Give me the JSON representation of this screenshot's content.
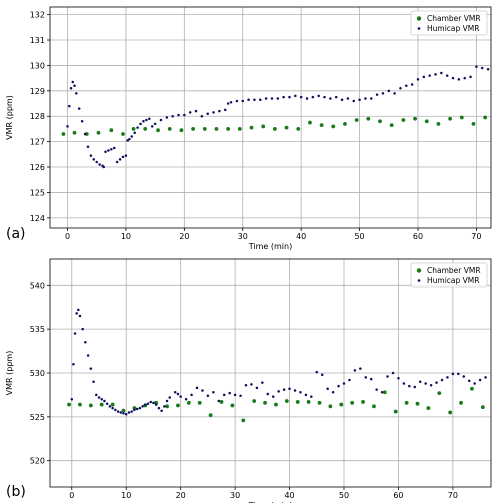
{
  "chart_data": [
    {
      "type": "scatter",
      "panel_label": "(a)",
      "xlabel": "Time (min)",
      "ylabel": "VMR (ppm)",
      "xlim": [
        -3,
        72.5
      ],
      "ylim": [
        123.6,
        132.3
      ],
      "xticks": [
        0,
        10,
        20,
        30,
        40,
        50,
        60,
        70
      ],
      "yticks": [
        124,
        125,
        126,
        127,
        128,
        129,
        130,
        131,
        132
      ],
      "grid": true,
      "legend": "top-right",
      "series": [
        {
          "name": "Chamber VMR",
          "color": "#1a7a1a",
          "marker": "dot",
          "x": [
            -0.7,
            1.2,
            3.3,
            5.3,
            7.5,
            9.5,
            11.3,
            13.3,
            15.5,
            17.5,
            19.5,
            21.5,
            23.5,
            25.5,
            27.5,
            29.5,
            31.5,
            33.5,
            35.5,
            37.5,
            39.5,
            41.5,
            43.5,
            45.5,
            47.5,
            49.5,
            51.5,
            53.5,
            55.5,
            57.5,
            59.5,
            61.5,
            63.5,
            65.5,
            67.5,
            69.5,
            71.5
          ],
          "y": [
            127.3,
            127.35,
            127.3,
            127.35,
            127.45,
            127.3,
            127.5,
            127.5,
            127.45,
            127.5,
            127.45,
            127.5,
            127.5,
            127.5,
            127.5,
            127.5,
            127.55,
            127.6,
            127.5,
            127.55,
            127.5,
            127.75,
            127.65,
            127.6,
            127.7,
            127.85,
            127.9,
            127.8,
            127.65,
            127.85,
            127.9,
            127.8,
            127.7,
            127.9,
            127.95,
            127.7,
            127.95
          ]
        },
        {
          "name": "Humicap VMR",
          "color": "#0d0d5e",
          "marker": "small-dot",
          "x": [
            0,
            0.3,
            0.6,
            0.9,
            1.2,
            1.5,
            2,
            2.5,
            3,
            3.5,
            4,
            4.5,
            5,
            5.5,
            6,
            6.2,
            6.5,
            7,
            7.5,
            8,
            8.5,
            9,
            9.5,
            10,
            10.3,
            10.6,
            11,
            11.5,
            12,
            12.5,
            13,
            13.5,
            14,
            14.5,
            15,
            16,
            17,
            18,
            19,
            20,
            21,
            22,
            23,
            24,
            25,
            26,
            27,
            27.5,
            28,
            29,
            30,
            31,
            32,
            33,
            34,
            35,
            36,
            37,
            38,
            39,
            40,
            41,
            42,
            43,
            44,
            45,
            46,
            47,
            48,
            49,
            50,
            51,
            52,
            53,
            54,
            55,
            56,
            57,
            58,
            59,
            60,
            61,
            62,
            63,
            64,
            65,
            66,
            67,
            68,
            69,
            70,
            71,
            72
          ],
          "y": [
            127.6,
            128.4,
            129.1,
            129.35,
            129.2,
            128.9,
            128.3,
            127.8,
            127.3,
            126.8,
            126.45,
            126.3,
            126.2,
            126.1,
            126.05,
            126.0,
            126.6,
            126.65,
            126.7,
            126.75,
            126.2,
            126.3,
            126.4,
            126.45,
            127.05,
            127.1,
            127.2,
            127.35,
            127.55,
            127.7,
            127.8,
            127.85,
            127.9,
            127.6,
            127.7,
            127.85,
            127.95,
            128.0,
            128.05,
            128.05,
            128.15,
            128.2,
            128.0,
            128.1,
            128.15,
            128.2,
            128.25,
            128.5,
            128.55,
            128.6,
            128.6,
            128.65,
            128.65,
            128.65,
            128.7,
            128.7,
            128.7,
            128.75,
            128.75,
            128.8,
            128.75,
            128.7,
            128.75,
            128.8,
            128.75,
            128.7,
            128.75,
            128.65,
            128.7,
            128.6,
            128.65,
            128.7,
            128.7,
            128.85,
            128.9,
            129.0,
            128.9,
            129.1,
            129.2,
            129.25,
            129.45,
            129.55,
            129.6,
            129.65,
            129.7,
            129.6,
            129.5,
            129.45,
            129.5,
            129.55,
            129.95,
            129.9,
            129.85
          ]
        }
      ]
    },
    {
      "type": "scatter",
      "panel_label": "(b)",
      "xlabel": "Time (min)",
      "ylabel": "VMR (ppm)",
      "xlim": [
        -4,
        77
      ],
      "ylim": [
        517,
        543
      ],
      "xticks": [
        0,
        10,
        20,
        30,
        40,
        50,
        60,
        70
      ],
      "yticks": [
        520,
        525,
        530,
        535,
        540
      ],
      "grid": true,
      "legend": "top-right",
      "series": [
        {
          "name": "Chamber VMR",
          "color": "#1a7a1a",
          "marker": "dot",
          "x": [
            -0.5,
            1.5,
            3.5,
            5.5,
            7.5,
            9.5,
            11.5,
            13.5,
            15.5,
            17.5,
            19.5,
            21.5,
            23.5,
            25.5,
            27.5,
            29.5,
            31.5,
            33.5,
            35.5,
            37.5,
            39.5,
            41.5,
            43.5,
            45.5,
            47.5,
            49.5,
            51.5,
            53.5,
            55.5,
            57.5,
            59.5,
            61.5,
            63.5,
            65.5,
            67.5,
            69.5,
            71.5,
            73.5,
            75.5
          ],
          "y": [
            526.4,
            526.4,
            526.3,
            526.4,
            526.4,
            525.7,
            526.0,
            526.3,
            526.6,
            526.2,
            526.3,
            526.6,
            526.6,
            525.2,
            526.7,
            526.3,
            524.6,
            526.8,
            526.6,
            526.4,
            526.8,
            526.7,
            526.7,
            526.6,
            526.2,
            526.4,
            526.6,
            526.7,
            526.2,
            527.8,
            525.6,
            526.6,
            526.5,
            526.0,
            527.7,
            525.5,
            526.6,
            528.2,
            526.1
          ]
        },
        {
          "name": "Humicap VMR",
          "color": "#0d0d5e",
          "marker": "small-dot",
          "x": [
            0,
            0.3,
            0.6,
            0.9,
            1.2,
            1.5,
            2,
            2.5,
            3,
            3.5,
            4,
            4.5,
            5,
            5.5,
            6,
            6.5,
            7,
            7.5,
            8,
            8.5,
            9,
            9.5,
            10,
            10.5,
            11,
            11.5,
            12,
            12.5,
            13,
            13.5,
            14,
            14.5,
            15,
            15.5,
            16,
            16.5,
            17,
            17.5,
            18,
            19,
            19.5,
            20,
            21,
            22,
            23,
            24,
            25,
            26,
            27,
            28,
            29,
            30,
            31,
            32,
            33,
            34,
            35,
            36,
            37,
            38,
            39,
            40,
            41,
            42,
            43,
            44,
            45,
            46,
            47,
            48,
            49,
            50,
            51,
            52,
            53,
            54,
            55,
            56,
            57,
            58,
            59,
            60,
            61,
            62,
            63,
            64,
            65,
            66,
            67,
            68,
            69,
            70,
            71,
            72,
            73,
            74,
            75,
            76
          ],
          "y": [
            527.0,
            531.0,
            534.5,
            536.8,
            537.2,
            536.5,
            535.0,
            533.5,
            532.0,
            530.5,
            529.0,
            527.5,
            527.2,
            527.0,
            526.8,
            526.5,
            526.2,
            526.0,
            525.8,
            525.6,
            525.5,
            525.4,
            525.3,
            525.5,
            525.6,
            525.8,
            525.9,
            526.0,
            526.2,
            526.4,
            526.5,
            526.7,
            526.6,
            526.4,
            526.0,
            525.7,
            526.2,
            526.8,
            527.2,
            527.8,
            527.6,
            527.3,
            527.0,
            527.5,
            528.3,
            528.0,
            527.4,
            527.8,
            526.8,
            527.5,
            527.7,
            527.5,
            527.4,
            528.6,
            528.7,
            528.3,
            528.9,
            527.6,
            527.3,
            527.9,
            528.1,
            528.2,
            528.0,
            527.8,
            527.5,
            527.3,
            530.1,
            529.8,
            528.2,
            527.8,
            528.5,
            528.8,
            529.2,
            530.3,
            530.5,
            529.5,
            529.3,
            528.1,
            527.8,
            529.6,
            530.0,
            529.4,
            528.8,
            528.5,
            528.4,
            529.0,
            528.8,
            528.6,
            528.9,
            529.2,
            529.5,
            529.9,
            529.9,
            529.6,
            529.1,
            528.8,
            529.2,
            529.5
          ]
        }
      ]
    }
  ]
}
